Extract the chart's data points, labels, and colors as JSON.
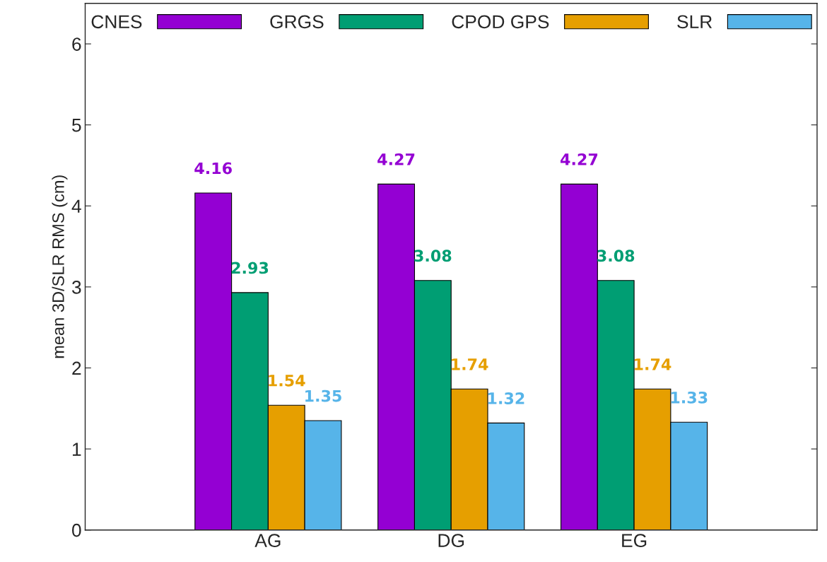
{
  "chart_data": {
    "type": "bar",
    "ylabel": "mean 3D/SLR RMS (cm)",
    "categories": [
      "AG",
      "DG",
      "EG"
    ],
    "series": [
      {
        "name": "CNES",
        "color": "#9400d3",
        "values": [
          4.16,
          4.27,
          4.27
        ]
      },
      {
        "name": "GRGS",
        "color": "#009e73",
        "values": [
          2.93,
          3.08,
          3.08
        ]
      },
      {
        "name": "CPOD GPS",
        "color": "#e69f00",
        "values": [
          1.54,
          1.74,
          1.74
        ]
      },
      {
        "name": "SLR",
        "color": "#56b4e9",
        "values": [
          1.35,
          1.32,
          1.33
        ]
      }
    ],
    "ylim": [
      0,
      6.5
    ],
    "yticks": [
      0,
      1,
      2,
      3,
      4,
      5,
      6
    ],
    "data_labels": true,
    "legend": "top",
    "grid": false
  }
}
